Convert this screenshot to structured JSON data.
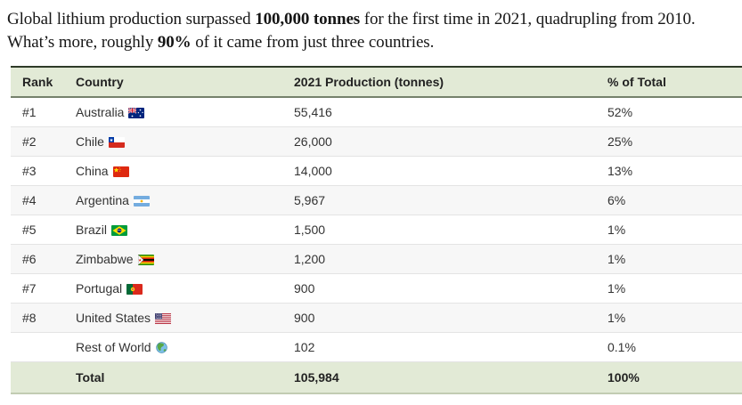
{
  "intro": {
    "segments": [
      {
        "text": "Global lithium production surpassed ",
        "bold": false
      },
      {
        "text": "100,000 tonnes",
        "bold": true
      },
      {
        "text": " for the first time in 2021, quadrupling from 2010. What’s more, roughly ",
        "bold": false
      },
      {
        "text": "90%",
        "bold": true
      },
      {
        "text": " of it came from just three countries.",
        "bold": false
      }
    ]
  },
  "table": {
    "columns": [
      "Rank",
      "Country",
      "2021 Production (tonnes)",
      "% of Total"
    ],
    "rows": [
      {
        "rank": "#1",
        "country": "Australia",
        "flag": "australia",
        "production": "55,416",
        "percent": "52%"
      },
      {
        "rank": "#2",
        "country": "Chile",
        "flag": "chile",
        "production": "26,000",
        "percent": "25%"
      },
      {
        "rank": "#3",
        "country": "China",
        "flag": "china",
        "production": "14,000",
        "percent": "13%"
      },
      {
        "rank": "#4",
        "country": "Argentina",
        "flag": "argentina",
        "production": "5,967",
        "percent": "6%"
      },
      {
        "rank": "#5",
        "country": "Brazil",
        "flag": "brazil",
        "production": "1,500",
        "percent": "1%"
      },
      {
        "rank": "#6",
        "country": "Zimbabwe",
        "flag": "zimbabwe",
        "production": "1,200",
        "percent": "1%"
      },
      {
        "rank": "#7",
        "country": "Portugal",
        "flag": "portugal",
        "production": "900",
        "percent": "1%"
      },
      {
        "rank": "#8",
        "country": "United States",
        "flag": "usa",
        "production": "900",
        "percent": "1%"
      },
      {
        "rank": "",
        "country": "Rest of World",
        "flag": "globe",
        "production": "102",
        "percent": "0.1%"
      }
    ],
    "total": {
      "rank": "",
      "label": "Total",
      "production": "105,984",
      "percent": "100%"
    }
  },
  "chart_data": {
    "type": "table",
    "title": "Global lithium production by country, 2021",
    "columns": [
      "Rank",
      "Country",
      "2021 Production (tonnes)",
      "% of Total"
    ],
    "rows": [
      [
        "#1",
        "Australia",
        55416,
        "52%"
      ],
      [
        "#2",
        "Chile",
        26000,
        "25%"
      ],
      [
        "#3",
        "China",
        14000,
        "13%"
      ],
      [
        "#4",
        "Argentina",
        5967,
        "6%"
      ],
      [
        "#5",
        "Brazil",
        1500,
        "1%"
      ],
      [
        "#6",
        "Zimbabwe",
        1200,
        "1%"
      ],
      [
        "#7",
        "Portugal",
        900,
        "1%"
      ],
      [
        "#8",
        "United States",
        900,
        "1%"
      ],
      [
        "",
        "Rest of World",
        102,
        "0.1%"
      ],
      [
        "",
        "Total",
        105984,
        "100%"
      ]
    ]
  },
  "colors": {
    "header_bg": "#e2ead6",
    "accent_dark_border": "#2e3a28",
    "stripe_row": "#f7f7f7",
    "header_bottom_border": "#75816b"
  }
}
